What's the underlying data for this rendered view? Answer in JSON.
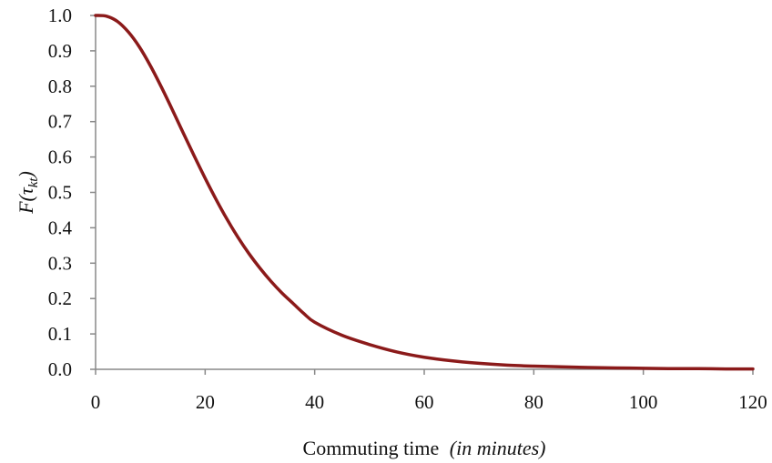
{
  "chart_data": {
    "type": "line",
    "title": "",
    "xlabel": {
      "main": "Commuting time",
      "note": "(in minutes)"
    },
    "ylabel": {
      "text": "F(τ",
      "sub": "kt",
      "close": ")"
    },
    "xlim": [
      0,
      120
    ],
    "ylim": [
      0,
      1.0
    ],
    "xticks": [
      "0",
      "20",
      "40",
      "60",
      "80",
      "100",
      "120"
    ],
    "yticks": [
      "0.0",
      "0.1",
      "0.2",
      "0.3",
      "0.4",
      "0.5",
      "0.6",
      "0.7",
      "0.8",
      "0.9",
      "1.0"
    ],
    "grid": false,
    "series": [
      {
        "color": "#8b1a1a",
        "x": [
          0,
          2,
          4,
          6,
          8,
          10,
          12,
          14,
          16,
          18,
          20,
          22,
          24,
          26,
          28,
          30,
          32,
          34,
          36,
          38,
          40,
          45,
          50,
          55,
          60,
          65,
          70,
          75,
          80,
          85,
          90,
          95,
          100,
          105,
          110,
          115,
          120
        ],
        "y": [
          1.0,
          0.998,
          0.983,
          0.953,
          0.911,
          0.858,
          0.798,
          0.734,
          0.668,
          0.603,
          0.54,
          0.48,
          0.424,
          0.373,
          0.327,
          0.286,
          0.249,
          0.216,
          0.187,
          0.158,
          0.133,
          0.096,
          0.07,
          0.049,
          0.034,
          0.024,
          0.017,
          0.012,
          0.009,
          0.007,
          0.005,
          0.004,
          0.003,
          0.002,
          0.002,
          0.001,
          0.001
        ]
      }
    ]
  }
}
